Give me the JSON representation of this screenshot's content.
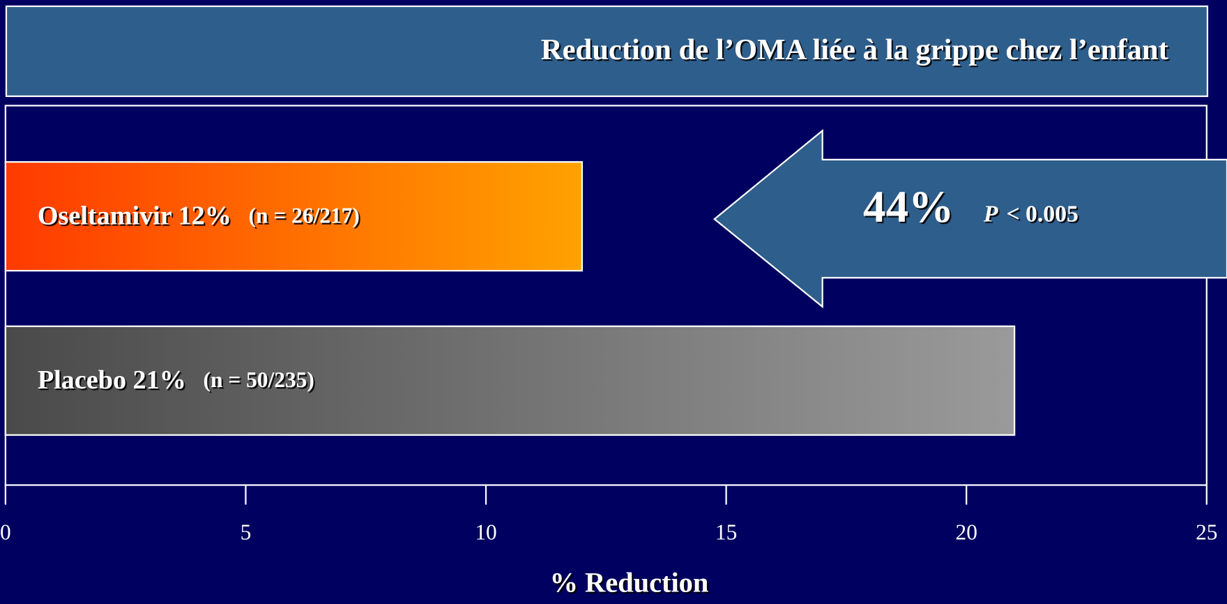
{
  "chart_data": {
    "type": "bar",
    "orientation": "horizontal",
    "title": "Reduction de l’OMA liée à la grippe chez l’enfant",
    "categories": [
      "Oseltamivir 12%",
      "Placebo 21%"
    ],
    "sample_sizes": [
      "(n = 26/217)",
      "(n = 50/235)"
    ],
    "values": [
      12,
      21
    ],
    "colors": [
      [
        "#ff3a00",
        "#ffa200"
      ],
      [
        "#4a4a4a",
        "#9a9a9a"
      ]
    ],
    "xlim": [
      0,
      25
    ],
    "xticks": [
      0,
      5,
      10,
      15,
      20,
      25
    ],
    "xlabel": "% Reduction",
    "annotation": {
      "value_text": "44%",
      "p_label": "P",
      "p_text": "< 0.005"
    }
  }
}
